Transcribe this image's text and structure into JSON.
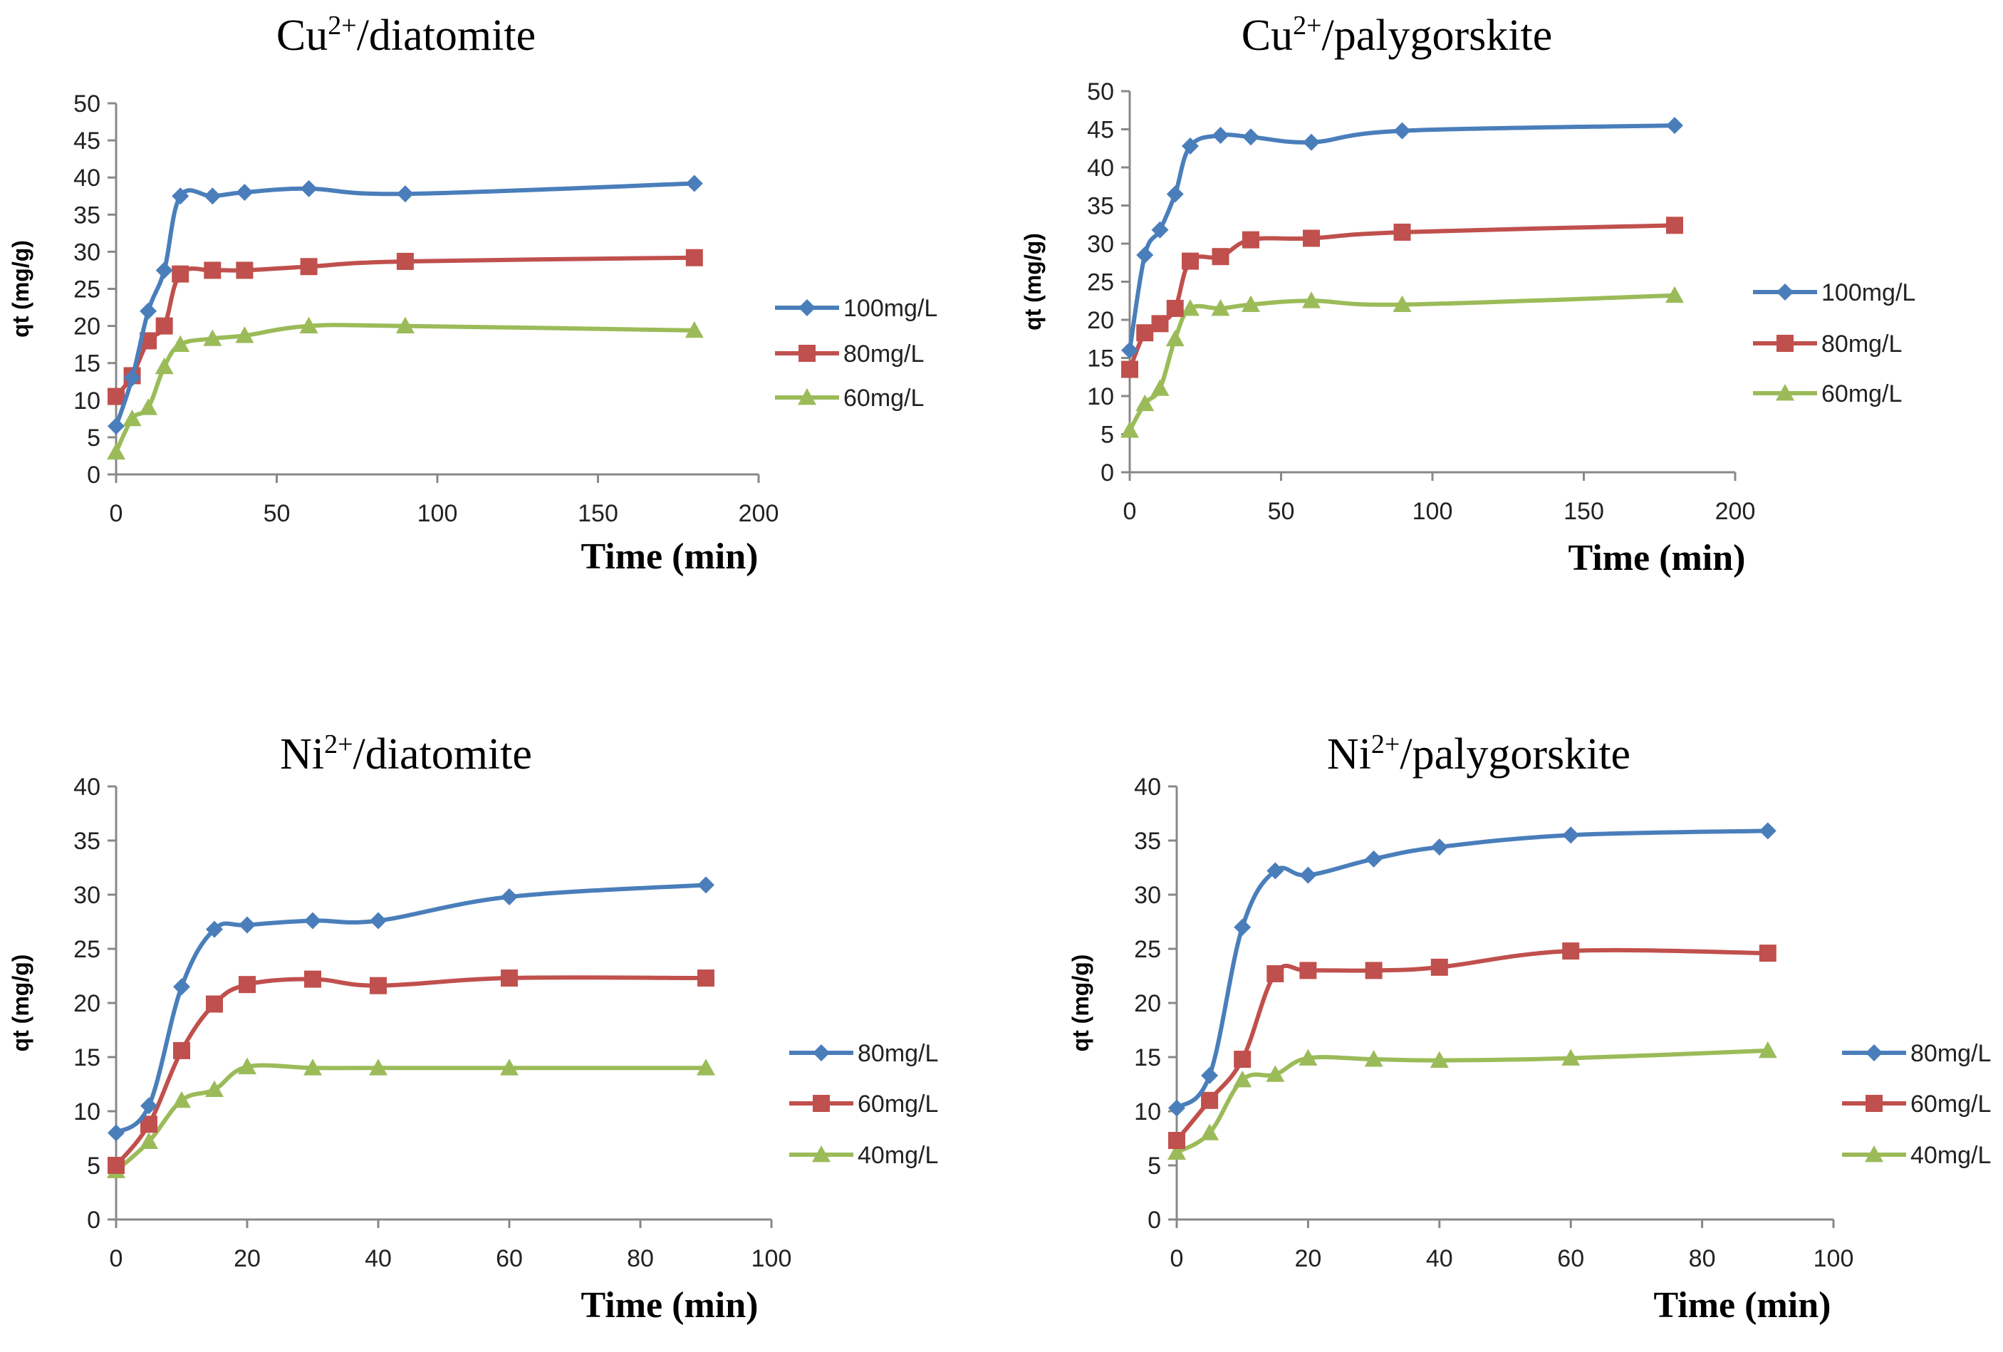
{
  "chart_data": [
    {
      "type": "line",
      "title": "Cu",
      "title_sup": "2+",
      "title_rest": "/diatomite",
      "xlabel": "Time (min)",
      "ylabel": "qt (mg/g)",
      "xlim": [
        0,
        200
      ],
      "ylim": [
        0,
        50
      ],
      "xticks": [
        0,
        50,
        100,
        150,
        200
      ],
      "yticks": [
        0,
        5,
        10,
        15,
        20,
        25,
        30,
        35,
        40,
        45,
        50
      ],
      "legend_position": "right",
      "series": [
        {
          "name": "100mg/L",
          "color": "#4a7ebb",
          "marker": "diamond",
          "x": [
            0,
            5,
            10,
            15,
            20,
            30,
            40,
            60,
            90,
            180
          ],
          "y": [
            6.5,
            13,
            22,
            27.5,
            37.5,
            37.5,
            38,
            38.5,
            37.8,
            39.2
          ]
        },
        {
          "name": "80mg/L",
          "color": "#c0504d",
          "marker": "square",
          "x": [
            0,
            5,
            10,
            15,
            20,
            30,
            40,
            60,
            90,
            180
          ],
          "y": [
            10.5,
            13.3,
            18,
            20,
            27,
            27.5,
            27.5,
            28,
            28.7,
            29.2
          ]
        },
        {
          "name": "60mg/L",
          "color": "#9bbb59",
          "marker": "triangle",
          "x": [
            0,
            5,
            10,
            15,
            20,
            30,
            40,
            60,
            90,
            180
          ],
          "y": [
            3,
            7.5,
            9,
            14.5,
            17.5,
            18.3,
            18.7,
            20,
            20,
            19.4
          ]
        }
      ]
    },
    {
      "type": "line",
      "title": "Cu",
      "title_sup": "2+",
      "title_rest": "/palygorskite",
      "xlabel": "Time (min)",
      "ylabel": "qt (mg/g)",
      "xlim": [
        0,
        200
      ],
      "ylim": [
        0,
        50
      ],
      "xticks": [
        0,
        50,
        100,
        150,
        200
      ],
      "yticks": [
        0,
        5,
        10,
        15,
        20,
        25,
        30,
        35,
        40,
        45,
        50
      ],
      "legend_position": "right",
      "series": [
        {
          "name": "100mg/L",
          "color": "#4a7ebb",
          "marker": "diamond",
          "x": [
            0,
            5,
            10,
            15,
            20,
            30,
            40,
            60,
            90,
            180
          ],
          "y": [
            16,
            28.5,
            31.8,
            36.5,
            42.8,
            44.2,
            44,
            43.3,
            44.8,
            45.5
          ]
        },
        {
          "name": "80mg/L",
          "color": "#c0504d",
          "marker": "square",
          "x": [
            0,
            5,
            10,
            15,
            20,
            30,
            40,
            60,
            90,
            180
          ],
          "y": [
            13.5,
            18.3,
            19.5,
            21.5,
            27.7,
            28.3,
            30.5,
            30.7,
            31.5,
            32.4
          ]
        },
        {
          "name": "60mg/L",
          "color": "#9bbb59",
          "marker": "triangle",
          "x": [
            0,
            5,
            10,
            15,
            20,
            30,
            40,
            60,
            90,
            180
          ],
          "y": [
            5.5,
            9,
            11,
            17.5,
            21.5,
            21.5,
            22,
            22.5,
            22,
            23.2
          ]
        }
      ]
    },
    {
      "type": "line",
      "title": "Ni",
      "title_sup": "2+",
      "title_rest": "/diatomite",
      "xlabel": "Time (min)",
      "ylabel": "qt (mg/g)",
      "xlim": [
        0,
        100
      ],
      "ylim": [
        0,
        40
      ],
      "xticks": [
        0,
        20,
        40,
        60,
        80,
        100
      ],
      "yticks": [
        0,
        5,
        10,
        15,
        20,
        25,
        30,
        35,
        40
      ],
      "legend_position": "right",
      "series": [
        {
          "name": "80mg/L",
          "color": "#4a7ebb",
          "marker": "diamond",
          "x": [
            0,
            5,
            10,
            15,
            20,
            30,
            40,
            60,
            90
          ],
          "y": [
            8,
            10.5,
            21.5,
            26.8,
            27.2,
            27.6,
            27.6,
            29.8,
            30.9
          ]
        },
        {
          "name": "60mg/L",
          "color": "#c0504d",
          "marker": "square",
          "x": [
            0,
            5,
            10,
            15,
            20,
            30,
            40,
            60,
            90
          ],
          "y": [
            5,
            8.8,
            15.6,
            19.9,
            21.7,
            22.2,
            21.6,
            22.3,
            22.3
          ]
        },
        {
          "name": "40mg/L",
          "color": "#9bbb59",
          "marker": "triangle",
          "x": [
            0,
            5,
            10,
            15,
            20,
            30,
            40,
            60,
            90
          ],
          "y": [
            4.5,
            7.2,
            11,
            12,
            14.1,
            14,
            14,
            14,
            14
          ]
        }
      ]
    },
    {
      "type": "line",
      "title": "Ni",
      "title_sup": "2+",
      "title_rest": "/palygorskite",
      "xlabel": "Time (min)",
      "ylabel": "qt (mg/g)",
      "xlim": [
        0,
        100
      ],
      "ylim": [
        0,
        40
      ],
      "xticks": [
        0,
        20,
        40,
        60,
        80,
        100
      ],
      "yticks": [
        0,
        5,
        10,
        15,
        20,
        25,
        30,
        35,
        40
      ],
      "legend_position": "right",
      "series": [
        {
          "name": "80mg/L",
          "color": "#4a7ebb",
          "marker": "diamond",
          "x": [
            0,
            5,
            10,
            15,
            20,
            30,
            40,
            60,
            90
          ],
          "y": [
            10.3,
            13.3,
            27,
            32.2,
            31.8,
            33.3,
            34.4,
            35.5,
            35.9
          ]
        },
        {
          "name": "60mg/L",
          "color": "#c0504d",
          "marker": "square",
          "x": [
            0,
            5,
            10,
            15,
            20,
            30,
            40,
            60,
            90
          ],
          "y": [
            7.3,
            11,
            14.8,
            22.7,
            23,
            23,
            23.3,
            24.8,
            24.6
          ]
        },
        {
          "name": "40mg/L",
          "color": "#9bbb59",
          "marker": "triangle",
          "x": [
            0,
            5,
            10,
            15,
            20,
            30,
            40,
            60,
            90
          ],
          "y": [
            6.2,
            8,
            12.9,
            13.4,
            14.9,
            14.8,
            14.7,
            14.9,
            15.6
          ]
        }
      ]
    }
  ]
}
